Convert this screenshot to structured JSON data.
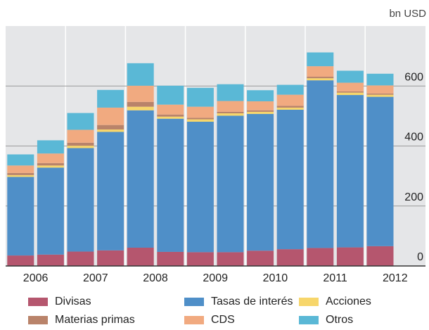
{
  "chart_data": {
    "type": "stacked-bar",
    "unit_label": "bn USD",
    "categories": [
      "2006",
      null,
      "2007",
      null,
      "2008",
      null,
      "2009",
      null,
      "2010",
      null,
      "2011",
      null,
      "2012"
    ],
    "series": [
      {
        "name": "Divisas",
        "color": "#b5566e",
        "values": [
          35,
          38,
          48,
          52,
          61,
          47,
          46,
          46,
          51,
          56,
          60,
          62,
          66
        ]
      },
      {
        "name": "Tasas de interés",
        "color": "#4f8fc8",
        "values": [
          262,
          290,
          345,
          395,
          458,
          444,
          435,
          455,
          456,
          465,
          559,
          508,
          498
        ]
      },
      {
        "name": "Acciones",
        "color": "#f7d66b",
        "values": [
          6,
          7,
          8,
          8,
          12,
          7,
          8,
          8,
          7,
          7,
          7,
          8,
          7
        ]
      },
      {
        "name": "Materias primas",
        "color": "#b9836a",
        "values": [
          7,
          8,
          10,
          15,
          16,
          7,
          5,
          5,
          5,
          6,
          5,
          4,
          4
        ]
      },
      {
        "name": "CDS",
        "color": "#f1aa80",
        "values": [
          25,
          32,
          43,
          58,
          54,
          33,
          37,
          36,
          30,
          37,
          35,
          29,
          27
        ]
      },
      {
        "name": "Otros",
        "color": "#5ab8d6",
        "values": [
          37,
          44,
          56,
          59,
          75,
          63,
          63,
          56,
          37,
          33,
          46,
          40,
          39
        ]
      }
    ],
    "ylim": [
      0,
      800
    ],
    "yticks": [
      0,
      200,
      400,
      600
    ],
    "grid": true
  }
}
